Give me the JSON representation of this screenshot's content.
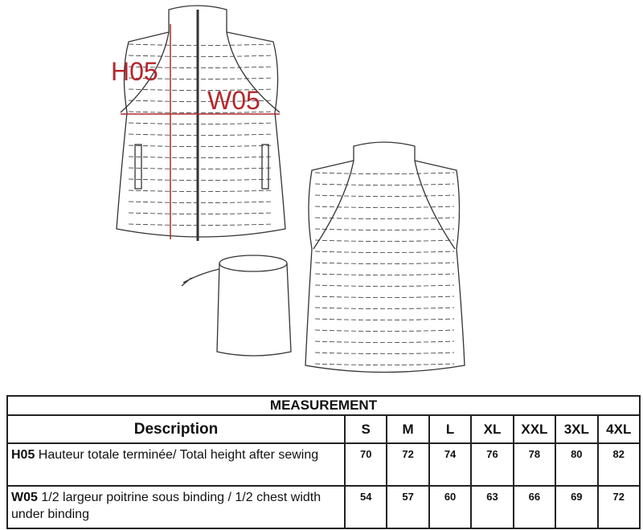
{
  "drawing": {
    "labels": {
      "height": "H05",
      "width": "W05"
    },
    "annotation_color": "#b3282d"
  },
  "table": {
    "title": "MEASUREMENT",
    "description_header": "Description",
    "sizes": [
      "S",
      "M",
      "L",
      "XL",
      "XXL",
      "3XL",
      "4XL"
    ],
    "rows": [
      {
        "code": "H05",
        "text": " Hauteur totale  terminée/ Total height after sewing",
        "values": [
          "70",
          "72",
          "74",
          "76",
          "78",
          "80",
          "82"
        ]
      },
      {
        "code": "W05",
        "text": " 1/2 largeur poitrine sous binding / 1/2 chest width under binding",
        "values": [
          "54",
          "57",
          "60",
          "63",
          "66",
          "69",
          "72"
        ]
      }
    ]
  }
}
